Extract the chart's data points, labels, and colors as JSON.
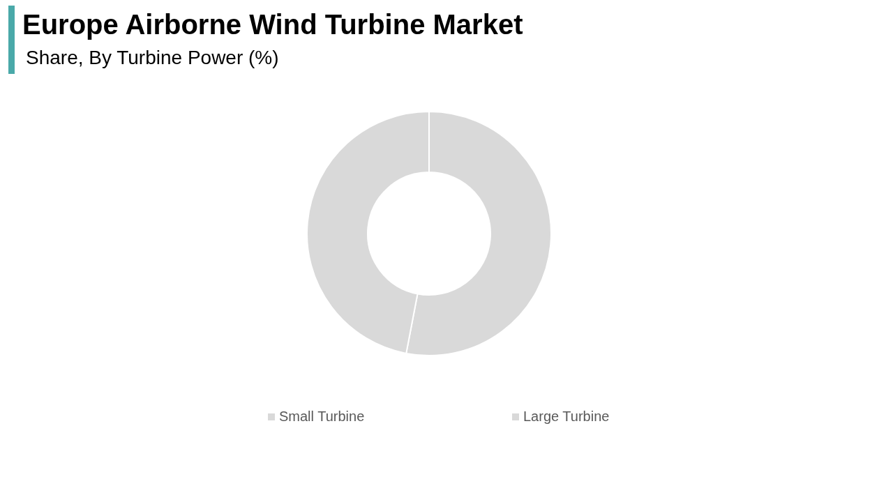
{
  "chart_data": {
    "type": "donut",
    "title": "Europe Airborne Wind Turbine Market",
    "subtitle": "Share, By Turbine Power (%)",
    "categories": [
      "Small Turbine",
      "Large Turbine"
    ],
    "values": [
      53,
      47
    ],
    "colors": [
      "#d9d9d9",
      "#d9d9d9"
    ],
    "legend": "bottom"
  }
}
